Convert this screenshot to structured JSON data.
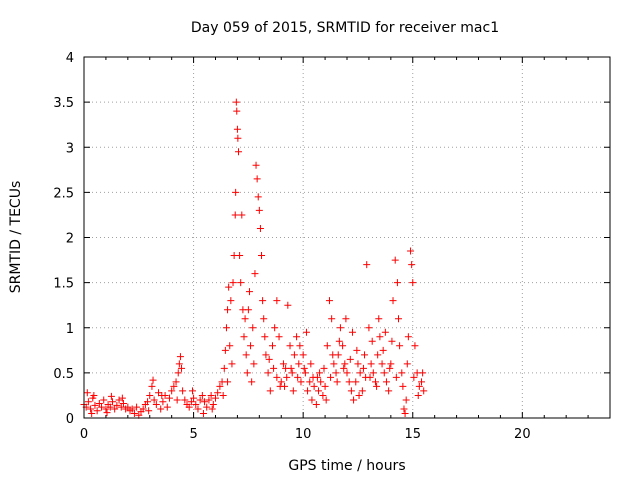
{
  "chart_data": {
    "type": "scatter",
    "title": "Day 059 of 2015, SRMTID for receiver mac1",
    "xlabel": "GPS time / hours",
    "ylabel": "SRMTID / TECUs",
    "xlim": [
      0,
      24
    ],
    "ylim": [
      0,
      4
    ],
    "x_ticks": [
      0,
      5,
      10,
      15,
      20
    ],
    "y_ticks": [
      0,
      0.5,
      1,
      1.5,
      2,
      2.5,
      3,
      3.5,
      4
    ],
    "x_tick_labels": [
      "0",
      "5",
      "10",
      "15",
      "20"
    ],
    "y_tick_labels": [
      "0",
      "0.5",
      "1",
      "1.5",
      "2",
      "2.5",
      "3",
      "3.5",
      "4"
    ],
    "grid": true,
    "legend": "none",
    "marker": "plus",
    "color": "#ff0000",
    "series": [
      {
        "values": [
          [
            0.0,
            0.15
          ],
          [
            0.1,
            0.12
          ],
          [
            0.2,
            0.18
          ],
          [
            0.3,
            0.1
          ],
          [
            0.4,
            0.22
          ],
          [
            0.5,
            0.14
          ],
          [
            0.6,
            0.08
          ],
          [
            0.7,
            0.16
          ],
          [
            0.8,
            0.12
          ],
          [
            0.9,
            0.2
          ],
          [
            1.0,
            0.1
          ],
          [
            1.1,
            0.15
          ],
          [
            1.2,
            0.12
          ],
          [
            1.3,
            0.18
          ],
          [
            1.4,
            0.1
          ],
          [
            1.5,
            0.14
          ],
          [
            1.6,
            0.2
          ],
          [
            1.7,
            0.12
          ],
          [
            1.8,
            0.16
          ],
          [
            1.9,
            0.1
          ],
          [
            0.15,
            0.28
          ],
          [
            0.45,
            0.25
          ],
          [
            1.25,
            0.24
          ],
          [
            1.75,
            0.22
          ],
          [
            0.35,
            0.05
          ],
          [
            1.05,
            0.06
          ],
          [
            2.0,
            0.12
          ],
          [
            2.1,
            0.08
          ],
          [
            2.2,
            0.1
          ],
          [
            2.3,
            0.05
          ],
          [
            2.4,
            0.12
          ],
          [
            2.5,
            0.03
          ],
          [
            2.6,
            0.07
          ],
          [
            2.7,
            0.1
          ],
          [
            2.8,
            0.15
          ],
          [
            2.9,
            0.18
          ],
          [
            3.0,
            0.25
          ],
          [
            3.1,
            0.35
          ],
          [
            3.15,
            0.42
          ],
          [
            3.2,
            0.2
          ],
          [
            3.3,
            0.15
          ],
          [
            3.4,
            0.28
          ],
          [
            3.5,
            0.1
          ],
          [
            3.6,
            0.18
          ],
          [
            3.7,
            0.25
          ],
          [
            3.8,
            0.12
          ],
          [
            3.9,
            0.22
          ],
          [
            4.0,
            0.3
          ],
          [
            4.1,
            0.35
          ],
          [
            4.2,
            0.4
          ],
          [
            4.3,
            0.5
          ],
          [
            4.35,
            0.6
          ],
          [
            4.4,
            0.68
          ],
          [
            4.45,
            0.55
          ],
          [
            4.5,
            0.3
          ],
          [
            4.6,
            0.2
          ],
          [
            4.7,
            0.15
          ],
          [
            4.8,
            0.12
          ],
          [
            4.9,
            0.18
          ],
          [
            5.0,
            0.22
          ],
          [
            5.1,
            0.15
          ],
          [
            5.2,
            0.1
          ],
          [
            5.3,
            0.2
          ],
          [
            5.4,
            0.25
          ],
          [
            5.5,
            0.18
          ],
          [
            5.6,
            0.12
          ],
          [
            5.7,
            0.2
          ],
          [
            5.8,
            0.25
          ],
          [
            5.9,
            0.15
          ],
          [
            6.0,
            0.22
          ],
          [
            6.1,
            0.28
          ],
          [
            6.2,
            0.35
          ],
          [
            6.3,
            0.4
          ],
          [
            6.4,
            0.55
          ],
          [
            6.45,
            0.75
          ],
          [
            6.5,
            1.0
          ],
          [
            6.55,
            1.2
          ],
          [
            6.6,
            1.45
          ],
          [
            6.65,
            0.8
          ],
          [
            6.7,
            1.3
          ],
          [
            6.75,
            0.6
          ],
          [
            6.8,
            1.5
          ],
          [
            6.85,
            1.8
          ],
          [
            6.9,
            2.25
          ],
          [
            6.92,
            2.5
          ],
          [
            6.95,
            3.5
          ],
          [
            6.97,
            3.4
          ],
          [
            7.0,
            3.2
          ],
          [
            7.02,
            3.1
          ],
          [
            7.05,
            2.95
          ],
          [
            7.1,
            1.8
          ],
          [
            7.15,
            1.5
          ],
          [
            7.2,
            2.25
          ],
          [
            7.25,
            1.2
          ],
          [
            7.3,
            0.9
          ],
          [
            7.35,
            1.1
          ],
          [
            7.4,
            0.7
          ],
          [
            7.45,
            0.5
          ],
          [
            7.5,
            1.2
          ],
          [
            7.55,
            1.4
          ],
          [
            7.6,
            0.8
          ],
          [
            7.7,
            1.0
          ],
          [
            7.8,
            1.6
          ],
          [
            7.85,
            2.8
          ],
          [
            7.9,
            2.65
          ],
          [
            7.95,
            2.45
          ],
          [
            8.0,
            2.3
          ],
          [
            8.05,
            2.1
          ],
          [
            8.1,
            1.8
          ],
          [
            8.15,
            1.3
          ],
          [
            8.2,
            1.1
          ],
          [
            8.3,
            0.7
          ],
          [
            8.4,
            0.5
          ],
          [
            8.5,
            0.3
          ],
          [
            8.6,
            0.8
          ],
          [
            8.7,
            1.0
          ],
          [
            8.8,
            1.3
          ],
          [
            8.9,
            0.9
          ],
          [
            9.0,
            0.4
          ],
          [
            9.1,
            0.6
          ],
          [
            9.2,
            0.55
          ],
          [
            9.3,
            1.25
          ],
          [
            9.4,
            0.8
          ],
          [
            9.5,
            0.5
          ],
          [
            9.6,
            0.7
          ],
          [
            9.7,
            0.9
          ],
          [
            9.8,
            0.6
          ],
          [
            9.9,
            0.4
          ],
          [
            10.0,
            0.7
          ],
          [
            10.1,
            0.5
          ],
          [
            10.2,
            0.3
          ],
          [
            10.3,
            0.4
          ],
          [
            10.4,
            0.2
          ],
          [
            10.5,
            0.35
          ],
          [
            10.6,
            0.15
          ],
          [
            10.7,
            0.3
          ],
          [
            10.8,
            0.4
          ],
          [
            10.9,
            0.25
          ],
          [
            11.0,
            0.35
          ],
          [
            11.1,
            0.8
          ],
          [
            11.2,
            1.3
          ],
          [
            11.3,
            1.1
          ],
          [
            11.4,
            0.6
          ],
          [
            11.5,
            0.5
          ],
          [
            11.6,
            0.7
          ],
          [
            11.7,
            1.0
          ],
          [
            11.8,
            0.8
          ],
          [
            11.9,
            0.6
          ],
          [
            12.0,
            0.5
          ],
          [
            12.1,
            0.4
          ],
          [
            12.2,
            0.3
          ],
          [
            12.3,
            0.2
          ],
          [
            12.4,
            0.4
          ],
          [
            12.5,
            0.6
          ],
          [
            12.6,
            0.5
          ],
          [
            12.7,
            0.3
          ],
          [
            12.8,
            0.7
          ],
          [
            12.9,
            1.7
          ],
          [
            13.0,
            1.0
          ],
          [
            13.1,
            0.6
          ],
          [
            13.2,
            0.5
          ],
          [
            13.3,
            0.4
          ],
          [
            13.4,
            0.7
          ],
          [
            13.5,
            0.9
          ],
          [
            13.6,
            0.6
          ],
          [
            13.7,
            0.5
          ],
          [
            13.8,
            0.4
          ],
          [
            13.9,
            0.3
          ],
          [
            14.0,
            0.6
          ],
          [
            14.1,
            1.3
          ],
          [
            14.2,
            1.75
          ],
          [
            14.3,
            1.5
          ],
          [
            14.4,
            0.8
          ],
          [
            14.5,
            0.5
          ],
          [
            14.6,
            0.1
          ],
          [
            14.65,
            0.05
          ],
          [
            14.7,
            0.2
          ],
          [
            14.8,
            0.9
          ],
          [
            14.9,
            1.85
          ],
          [
            14.95,
            1.7
          ],
          [
            15.0,
            1.5
          ],
          [
            15.1,
            0.8
          ],
          [
            15.2,
            0.5
          ],
          [
            15.3,
            0.35
          ],
          [
            15.4,
            0.4
          ],
          [
            15.5,
            0.3
          ],
          [
            8.8,
            0.45
          ],
          [
            9.15,
            0.35
          ],
          [
            9.45,
            0.55
          ],
          [
            9.75,
            0.45
          ],
          [
            10.05,
            0.55
          ],
          [
            10.35,
            0.6
          ],
          [
            10.65,
            0.45
          ],
          [
            10.95,
            0.55
          ],
          [
            11.25,
            0.45
          ],
          [
            11.55,
            0.4
          ],
          [
            11.85,
            0.55
          ],
          [
            12.15,
            0.65
          ],
          [
            12.45,
            0.75
          ],
          [
            12.75,
            0.55
          ],
          [
            13.05,
            0.45
          ],
          [
            13.35,
            0.35
          ],
          [
            13.65,
            0.75
          ],
          [
            13.95,
            0.55
          ],
          [
            14.25,
            0.45
          ],
          [
            14.55,
            0.35
          ],
          [
            7.65,
            0.4
          ],
          [
            7.75,
            0.6
          ],
          [
            8.25,
            0.9
          ],
          [
            8.45,
            0.65
          ],
          [
            8.65,
            0.55
          ],
          [
            8.95,
            0.35
          ],
          [
            9.25,
            0.45
          ],
          [
            9.55,
            0.3
          ],
          [
            9.85,
            0.8
          ],
          [
            10.15,
            0.95
          ],
          [
            10.45,
            0.45
          ],
          [
            10.75,
            0.5
          ],
          [
            11.05,
            0.2
          ],
          [
            11.35,
            0.7
          ],
          [
            11.65,
            0.85
          ],
          [
            11.95,
            1.1
          ],
          [
            12.25,
            0.95
          ],
          [
            12.55,
            0.25
          ],
          [
            12.85,
            0.45
          ],
          [
            13.15,
            0.85
          ],
          [
            13.45,
            1.1
          ],
          [
            13.75,
            0.95
          ],
          [
            14.05,
            0.85
          ],
          [
            14.35,
            1.1
          ],
          [
            14.75,
            0.6
          ],
          [
            15.05,
            0.45
          ],
          [
            15.25,
            0.25
          ],
          [
            15.45,
            0.5
          ],
          [
            6.35,
            0.25
          ],
          [
            6.55,
            0.4
          ],
          [
            4.25,
            0.2
          ],
          [
            3.55,
            0.25
          ],
          [
            2.95,
            0.08
          ],
          [
            5.45,
            0.05
          ],
          [
            5.85,
            0.1
          ],
          [
            4.95,
            0.3
          ]
        ]
      }
    ]
  }
}
